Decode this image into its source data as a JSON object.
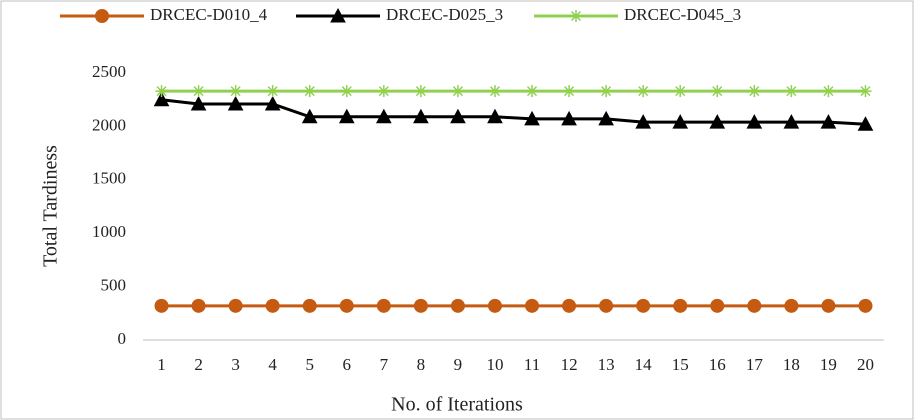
{
  "chart_data": {
    "type": "line",
    "x_label": "No. of Iterations",
    "y_label": "Total Tardiness",
    "categories": [
      "1",
      "2",
      "3",
      "4",
      "5",
      "6",
      "7",
      "8",
      "9",
      "10",
      "11",
      "12",
      "13",
      "14",
      "15",
      "16",
      "17",
      "18",
      "19",
      "20"
    ],
    "series": [
      {
        "name": "DRCEC-D010_4",
        "color": "#c55a11",
        "marker": "circle",
        "values": [
          320,
          320,
          320,
          320,
          320,
          320,
          320,
          320,
          320,
          320,
          320,
          320,
          320,
          320,
          320,
          320,
          320,
          320,
          320,
          320
        ]
      },
      {
        "name": "DRCEC-D025_3",
        "color": "#000000",
        "marker": "triangle",
        "values": [
          2250,
          2210,
          2210,
          2210,
          2090,
          2090,
          2090,
          2090,
          2090,
          2090,
          2070,
          2070,
          2070,
          2040,
          2040,
          2040,
          2040,
          2040,
          2040,
          2020
        ]
      },
      {
        "name": "DRCEC-D045_3",
        "color": "#92d050",
        "marker": "star",
        "values": [
          2330,
          2330,
          2330,
          2330,
          2330,
          2330,
          2330,
          2330,
          2330,
          2330,
          2330,
          2330,
          2330,
          2330,
          2330,
          2330,
          2330,
          2330,
          2330,
          2330
        ]
      }
    ],
    "ylim": [
      0,
      2500
    ],
    "yticks": [
      0,
      500,
      1000,
      1500,
      2000,
      2500
    ],
    "grid": false,
    "legend": "top"
  }
}
